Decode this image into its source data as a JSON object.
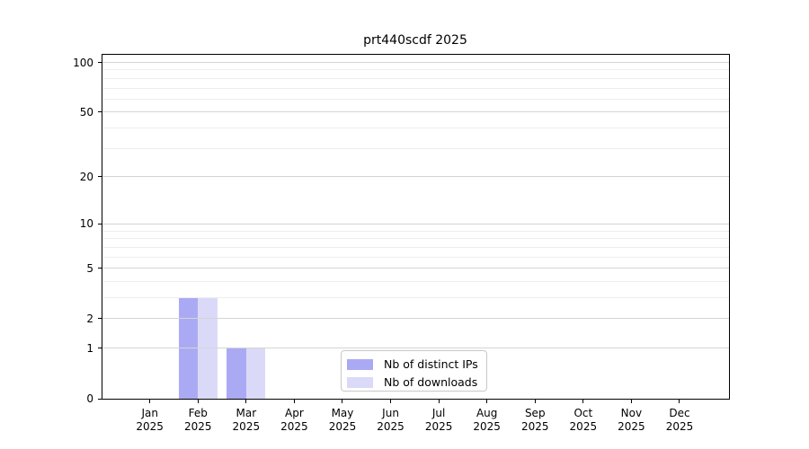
{
  "chart_data": {
    "type": "bar",
    "title": "prt440scdf 2025",
    "categories": [
      "Jan",
      "Feb",
      "Mar",
      "Apr",
      "May",
      "Jun",
      "Jul",
      "Aug",
      "Sep",
      "Oct",
      "Nov",
      "Dec"
    ],
    "x_sublabel": "2025",
    "series": [
      {
        "name": "Nb of distinct IPs",
        "color": "#aaaaf4",
        "values": [
          0,
          3,
          1,
          0,
          0,
          0,
          0,
          0,
          0,
          0,
          0,
          0
        ]
      },
      {
        "name": "Nb of downloads",
        "color": "#dadaf8",
        "values": [
          0,
          3,
          1,
          0,
          0,
          0,
          0,
          0,
          0,
          0,
          0,
          0
        ]
      }
    ],
    "y_scale": "log1p",
    "ylim": [
      0,
      100
    ],
    "y_ticks": [
      0,
      1,
      2,
      5,
      10,
      20,
      50,
      100
    ],
    "y_minor_ticks": [
      3,
      4,
      6,
      7,
      8,
      9,
      30,
      40,
      60,
      70,
      80,
      90
    ],
    "grid": "horizontal",
    "legend_position": "bottom-center",
    "colors": {
      "major_grid": "#d4d4d4",
      "minor_grid": "#ededed",
      "axis": "#000000",
      "background": "#ffffff"
    }
  }
}
